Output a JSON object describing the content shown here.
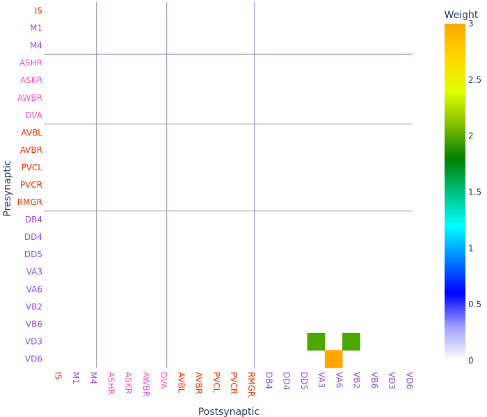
{
  "chart_data": {
    "type": "heatmap",
    "xlabel": "Postsynaptic",
    "ylabel": "Presynaptic",
    "colorbar": {
      "title": "Weight",
      "range": [
        0,
        3
      ],
      "ticks": [
        "0",
        "0.5",
        "1",
        "1.5",
        "2",
        "2.5",
        "3"
      ],
      "colorscale": [
        [
          0.0,
          "#ffffff"
        ],
        [
          0.1,
          "#a0a0ff"
        ],
        [
          0.2,
          "#0000ff"
        ],
        [
          0.3,
          "#0080ff"
        ],
        [
          0.4,
          "#00ffff"
        ],
        [
          0.5,
          "#00c080"
        ],
        [
          0.6,
          "#008000"
        ],
        [
          0.7,
          "#80c000"
        ],
        [
          0.8,
          "#e0ff00"
        ],
        [
          0.9,
          "#ffd700"
        ],
        [
          1.0,
          "#ffa500"
        ]
      ]
    },
    "x_categories": [
      {
        "label": "I5",
        "color": "#ff3300"
      },
      {
        "label": "M1",
        "color": "#9b4fd6"
      },
      {
        "label": "M4",
        "color": "#9b4fd6"
      },
      {
        "label": "ASHR",
        "color": "#ff55cc"
      },
      {
        "label": "ASKR",
        "color": "#ff55cc"
      },
      {
        "label": "AWBR",
        "color": "#ff55cc"
      },
      {
        "label": "DVA",
        "color": "#ff55cc"
      },
      {
        "label": "AVBL",
        "color": "#ff3300"
      },
      {
        "label": "AVBR",
        "color": "#ff3300"
      },
      {
        "label": "PVCL",
        "color": "#ff3300"
      },
      {
        "label": "PVCR",
        "color": "#ff3300"
      },
      {
        "label": "RMGR",
        "color": "#ff3300"
      },
      {
        "label": "DB4",
        "color": "#9b4fd6"
      },
      {
        "label": "DD4",
        "color": "#9b4fd6"
      },
      {
        "label": "DD5",
        "color": "#9b4fd6"
      },
      {
        "label": "VA3",
        "color": "#9b4fd6"
      },
      {
        "label": "VA6",
        "color": "#9b4fd6"
      },
      {
        "label": "VB2",
        "color": "#9b4fd6"
      },
      {
        "label": "VB6",
        "color": "#9b4fd6"
      },
      {
        "label": "VD3",
        "color": "#9b4fd6"
      },
      {
        "label": "VD6",
        "color": "#9b4fd6"
      }
    ],
    "y_categories": [
      {
        "label": "I5",
        "color": "#ff3300"
      },
      {
        "label": "M1",
        "color": "#9b4fd6"
      },
      {
        "label": "M4",
        "color": "#9b4fd6"
      },
      {
        "label": "ASHR",
        "color": "#ff55cc"
      },
      {
        "label": "ASKR",
        "color": "#ff55cc"
      },
      {
        "label": "AWBR",
        "color": "#ff55cc"
      },
      {
        "label": "DVA",
        "color": "#ff55cc"
      },
      {
        "label": "AVBL",
        "color": "#ff3300"
      },
      {
        "label": "AVBR",
        "color": "#ff3300"
      },
      {
        "label": "PVCL",
        "color": "#ff3300"
      },
      {
        "label": "PVCR",
        "color": "#ff3300"
      },
      {
        "label": "RMGR",
        "color": "#ff3300"
      },
      {
        "label": "DB4",
        "color": "#9b4fd6"
      },
      {
        "label": "DD4",
        "color": "#9b4fd6"
      },
      {
        "label": "DD5",
        "color": "#9b4fd6"
      },
      {
        "label": "VA3",
        "color": "#9b4fd6"
      },
      {
        "label": "VA6",
        "color": "#9b4fd6"
      },
      {
        "label": "VB2",
        "color": "#9b4fd6"
      },
      {
        "label": "VB6",
        "color": "#9b4fd6"
      },
      {
        "label": "VD3",
        "color": "#9b4fd6"
      },
      {
        "label": "VD6",
        "color": "#9b4fd6"
      }
    ],
    "cells": [
      {
        "pre": "VD3",
        "post": "VA3",
        "value": 2,
        "color": "#4ca800"
      },
      {
        "pre": "VD3",
        "post": "VB2",
        "value": 2,
        "color": "#4ca800"
      },
      {
        "pre": "VD6",
        "post": "VA6",
        "value": 3,
        "color": "#ffa500"
      }
    ],
    "group_dividers_after": [
      "M4",
      "DVA",
      "RMGR"
    ]
  }
}
